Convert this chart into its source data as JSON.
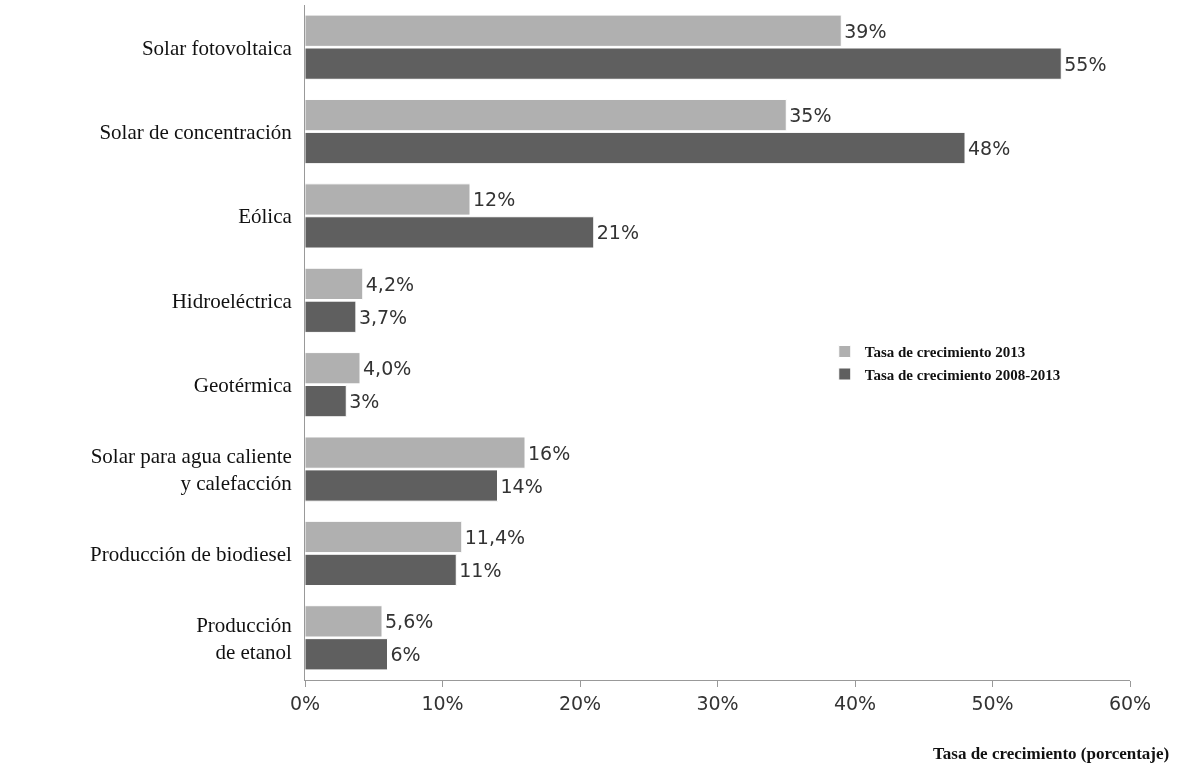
{
  "chart_data": {
    "type": "bar",
    "orientation": "horizontal",
    "xlabel": "Tasa de crecimiento (porcentaje)",
    "categories": [
      "Solar fotovoltaica",
      "Solar de concentración",
      "Eólica",
      "Hidroeléctrica",
      "Geotérmica",
      "Solar para agua caliente\ny calefacción",
      "Producción de biodiesel",
      "Producción\nde etanol"
    ],
    "series": [
      {
        "name": "Tasa de crecimiento 2013",
        "color": "#b0b0b0",
        "values": [
          39,
          35,
          12,
          4.2,
          4.0,
          16,
          11.4,
          5.6
        ],
        "value_labels": [
          "39%",
          "35%",
          "12%",
          "4,2%",
          "4,0%",
          "16%",
          "11,4%",
          "5,6%"
        ]
      },
      {
        "name": "Tasa de crecimiento 2008-2013",
        "color": "#5f5f5f",
        "values": [
          55,
          48,
          21,
          3.7,
          3,
          14,
          11,
          6
        ],
        "value_labels": [
          "55%",
          "48%",
          "21%",
          "3,7%",
          "3%",
          "14%",
          "11%",
          "6%"
        ]
      }
    ],
    "xlim": [
      0,
      60
    ],
    "xticks": [
      {
        "value": 0,
        "label": "0%"
      },
      {
        "value": 10,
        "label": "10%"
      },
      {
        "value": 20,
        "label": "20%"
      },
      {
        "value": 30,
        "label": "30%"
      },
      {
        "value": 40,
        "label": "40%"
      },
      {
        "value": 50,
        "label": "50%"
      },
      {
        "value": 60,
        "label": "60%"
      }
    ],
    "grid": false,
    "legend": "right"
  }
}
